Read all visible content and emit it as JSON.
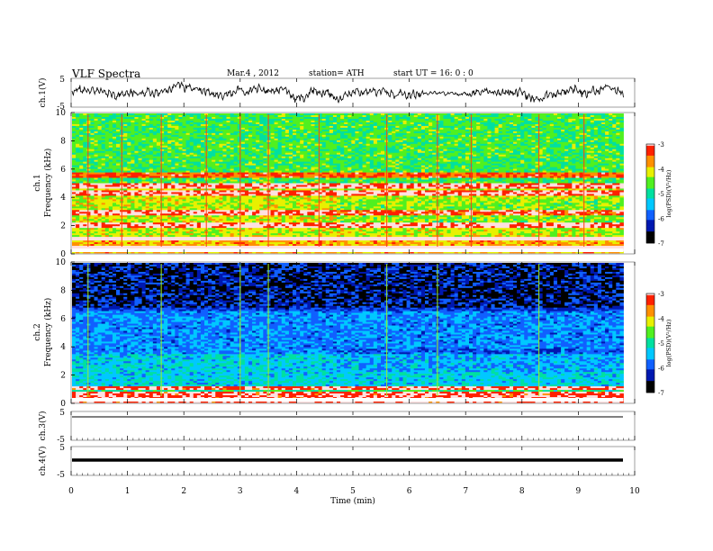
{
  "header": {
    "title": "VLF  Spectra",
    "date": "Mar.4  , 2012",
    "station": "station= ATH",
    "start": "start  UT  =    16: 0  : 0"
  },
  "chart_data": [
    {
      "id": "ch1-waveform",
      "type": "line",
      "ylabel": "ch.1(V)",
      "yticks": [
        5,
        -5
      ],
      "ylim": [
        -5,
        5
      ],
      "xlim": [
        0,
        10
      ],
      "data_end_min": 9.8,
      "series": [
        {
          "values_description_free": true,
          "amplitude_volts": 2.5
        }
      ]
    },
    {
      "id": "ch1-spectrogram",
      "type": "heatmap",
      "ylabel_top": "ch.1",
      "ylabel": "Frequency  (kHz)",
      "yticks": [
        0,
        2,
        4,
        6,
        8,
        10
      ],
      "ylim": [
        0,
        10
      ],
      "xlim": [
        0,
        10
      ],
      "data_end_min": 9.8,
      "colorbar": {
        "ticks": [
          "-3",
          "-4",
          "-5",
          "-6",
          "-7"
        ],
        "label": "log(PSD)(V²/Hz)",
        "range": [
          -7,
          -3
        ]
      },
      "strong_bands_khz": [
        0.3,
        1.0,
        2.0,
        2.9,
        4.3,
        4.8,
        5.6
      ],
      "sferic_times_min": [
        0.3,
        0.9,
        1.6,
        2.4,
        3.0,
        3.5,
        4.4,
        5.6,
        6.5,
        7.1,
        8.3,
        9.1
      ]
    },
    {
      "id": "ch2-spectrogram",
      "type": "heatmap",
      "ylabel_top": "ch.2",
      "ylabel": "Frequency  (kHz)",
      "yticks": [
        0,
        2,
        4,
        6,
        8,
        10
      ],
      "ylim": [
        0,
        10
      ],
      "xlim": [
        0,
        10
      ],
      "data_end_min": 9.8,
      "colorbar": {
        "ticks": [
          "-3",
          "-4",
          "-5",
          "-6",
          "-7"
        ],
        "label": "log(PSD)(V²/Hz)",
        "range": [
          -7,
          -3
        ]
      },
      "strong_bands_khz": [
        0.2,
        0.6,
        1.0
      ],
      "sferic_times_min": [
        0.3,
        1.6,
        3.0,
        3.5,
        5.6,
        6.5,
        8.3
      ]
    },
    {
      "id": "ch3-waveform",
      "type": "line",
      "ylabel": "ch.3(V)",
      "yticks": [
        5,
        -5
      ],
      "ylim": [
        -5,
        5
      ],
      "xlim": [
        0,
        10
      ],
      "data_end_min": 9.8,
      "series": [
        {
          "constant_level_volts": 0.0
        }
      ]
    },
    {
      "id": "ch4-waveform",
      "type": "line",
      "ylabel": "ch.4(V)",
      "yticks": [
        5,
        -5
      ],
      "ylim": [
        -5,
        5
      ],
      "xlim": [
        0,
        10
      ],
      "data_end_min": 9.8,
      "series": [
        {
          "constant_level_volts": 0.0
        }
      ]
    }
  ],
  "xaxis": {
    "label": "Time  (min)",
    "ticks": [
      "0",
      "1",
      "2",
      "3",
      "4",
      "5",
      "6",
      "7",
      "8",
      "9",
      "10"
    ]
  },
  "colors": {
    "ink": "#000000",
    "frame": "#888888",
    "cmap": [
      "#000000",
      "#0018b0",
      "#1060ff",
      "#00c8ff",
      "#00e0a0",
      "#50f020",
      "#e8f000",
      "#ff9000",
      "#ff2000",
      "#ffe0e0",
      "#ffffff"
    ]
  }
}
